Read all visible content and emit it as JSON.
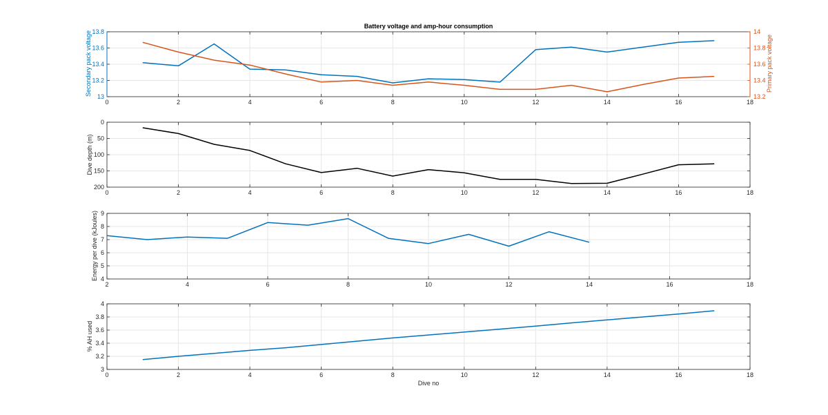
{
  "chart_data": [
    {
      "type": "line",
      "title": "Battery voltage and amp-hour consumption",
      "xlabel": "",
      "xlim": [
        0,
        18
      ],
      "xticks": [
        "0",
        "2",
        "4",
        "6",
        "8",
        "10",
        "12",
        "14",
        "16",
        "18"
      ],
      "ylabel": "Secondary pack voltage",
      "ylim": [
        13,
        13.8
      ],
      "yticks": [
        "13",
        "13.2",
        "13.4",
        "13.6",
        "13.8"
      ],
      "ylabel_right": "Primary pack voltage",
      "ylim_right": [
        13.2,
        14
      ],
      "yticks_right": [
        "13.2",
        "13.4",
        "13.6",
        "13.8",
        "14"
      ],
      "grid": true,
      "series": [
        {
          "axis": "left",
          "color": "#0072BD",
          "x": [
            1,
            2,
            3,
            4,
            5,
            6,
            7,
            8,
            9,
            10,
            11,
            12,
            13,
            14,
            15,
            16,
            17
          ],
          "values": [
            13.42,
            13.38,
            13.65,
            13.34,
            13.33,
            13.27,
            13.25,
            13.17,
            13.22,
            13.21,
            13.18,
            13.58,
            13.61,
            13.55,
            13.61,
            13.67,
            13.69
          ]
        },
        {
          "axis": "right",
          "color": "#D95319",
          "x": [
            1,
            2,
            3,
            4,
            5,
            6,
            7,
            8,
            9,
            10,
            11,
            12,
            13,
            14,
            15,
            16,
            17
          ],
          "values": [
            13.87,
            13.75,
            13.65,
            13.59,
            13.48,
            13.38,
            13.4,
            13.34,
            13.38,
            13.34,
            13.29,
            13.29,
            13.34,
            13.26,
            13.35,
            13.43,
            13.45
          ]
        }
      ]
    },
    {
      "type": "line",
      "xlim": [
        0,
        18
      ],
      "xticks": [
        "0",
        "2",
        "4",
        "6",
        "8",
        "10",
        "12",
        "14",
        "16",
        "18"
      ],
      "ylabel": "Dive depth (m)",
      "ylim": [
        0,
        200
      ],
      "y_reversed": true,
      "yticks": [
        "0",
        "50",
        "100",
        "150",
        "200"
      ],
      "grid": true,
      "series": [
        {
          "color": "#000000",
          "x": [
            1,
            2,
            3,
            4,
            5,
            6,
            7,
            8,
            9,
            10,
            11,
            12,
            13,
            14,
            15,
            16,
            17
          ],
          "values": [
            17,
            35,
            68,
            87,
            128,
            155,
            142,
            166,
            146,
            156,
            176,
            176,
            189,
            188,
            160,
            131,
            128
          ]
        }
      ]
    },
    {
      "type": "line",
      "xlim": [
        2,
        18
      ],
      "xticks": [
        "2",
        "4",
        "6",
        "8",
        "10",
        "12",
        "14",
        "16",
        "18"
      ],
      "ylabel": "Energy per dive (kJoules)",
      "ylim": [
        4,
        9
      ],
      "yticks": [
        "4",
        "5",
        "6",
        "7",
        "8",
        "9"
      ],
      "grid": true,
      "series": [
        {
          "color": "#0072BD",
          "x": [
            2,
            3,
            4,
            5,
            6,
            7,
            8,
            9,
            10,
            11,
            12,
            13,
            14
          ],
          "values": [
            7.3,
            7.0,
            7.2,
            7.1,
            8.3,
            8.1,
            8.6,
            7.1,
            6.7,
            7.4,
            6.5,
            7.6,
            6.8
          ]
        }
      ]
    },
    {
      "type": "line",
      "xlim": [
        0,
        18
      ],
      "xticks": [
        "0",
        "2",
        "4",
        "6",
        "8",
        "10",
        "12",
        "14",
        "16",
        "18"
      ],
      "xlabel": "Dive no",
      "ylabel": "% AH used",
      "ylim": [
        3,
        4
      ],
      "yticks": [
        "3",
        "3.2",
        "3.4",
        "3.6",
        "3.8",
        "4"
      ],
      "grid": true,
      "series": [
        {
          "color": "#0072BD",
          "x": [
            1,
            2,
            3,
            4,
            5,
            6,
            7,
            8,
            9,
            10,
            11,
            12,
            13,
            14,
            15,
            16,
            17
          ],
          "values": [
            3.15,
            3.2,
            3.245,
            3.29,
            3.33,
            3.38,
            3.43,
            3.48,
            3.525,
            3.57,
            3.615,
            3.66,
            3.71,
            3.755,
            3.8,
            3.845,
            3.895
          ]
        }
      ]
    }
  ]
}
